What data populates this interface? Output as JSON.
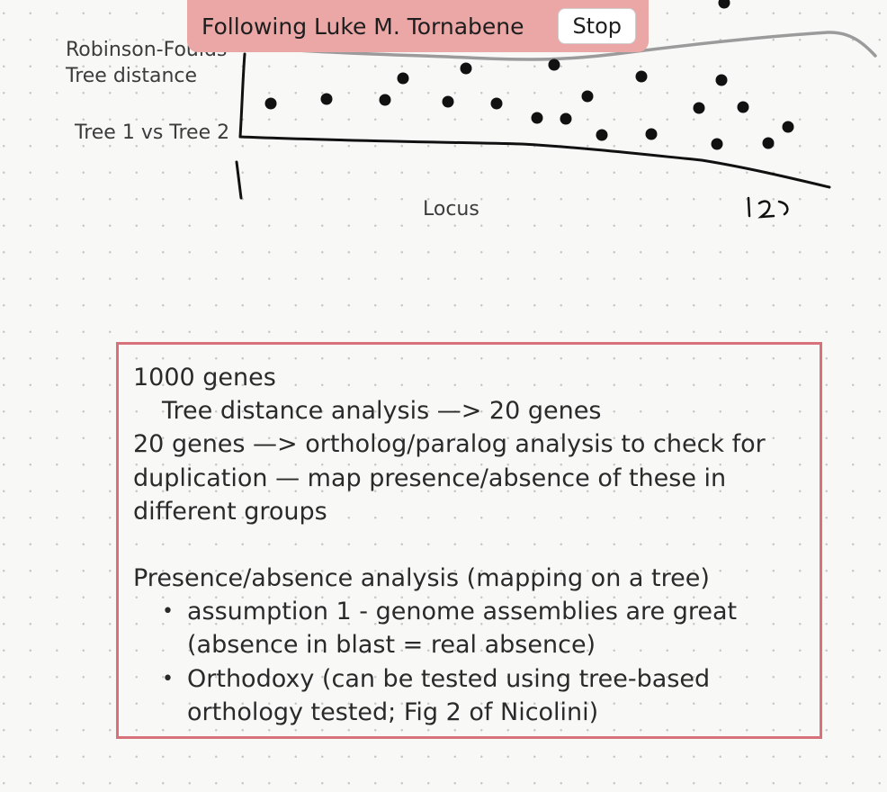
{
  "banner": {
    "text": "Following Luke M. Tornabene",
    "stop_label": "Stop"
  },
  "sketch": {
    "y_label_line1": "Robinson-Foulds",
    "y_label_line2": "Tree distance",
    "comparison_label": "Tree 1 vs Tree 2",
    "x_label": "Locus",
    "handwritten_number": "120"
  },
  "notes": {
    "line1": "1000 genes",
    "line2": "Tree distance analysis —> 20 genes",
    "line3": "20 genes —> ortholog/paralog analysis to check for",
    "line4": "duplication — map presence/absence of these in",
    "line5": "different groups",
    "line6": "Presence/absence analysis (mapping on a tree)",
    "bullet1_line1": "assumption 1 - genome assemblies are great",
    "bullet1_line2": "(absence in blast = real absence)",
    "bullet2_line1": "Orthodoxy (can be tested using tree-based",
    "bullet2_line2": "orthology tested; Fig 2 of Nicolini)"
  },
  "colors": {
    "banner_bg": "#eba6a6",
    "box_border": "#d8727a",
    "ink": "#111111",
    "stroke": "#9b9b9b"
  }
}
